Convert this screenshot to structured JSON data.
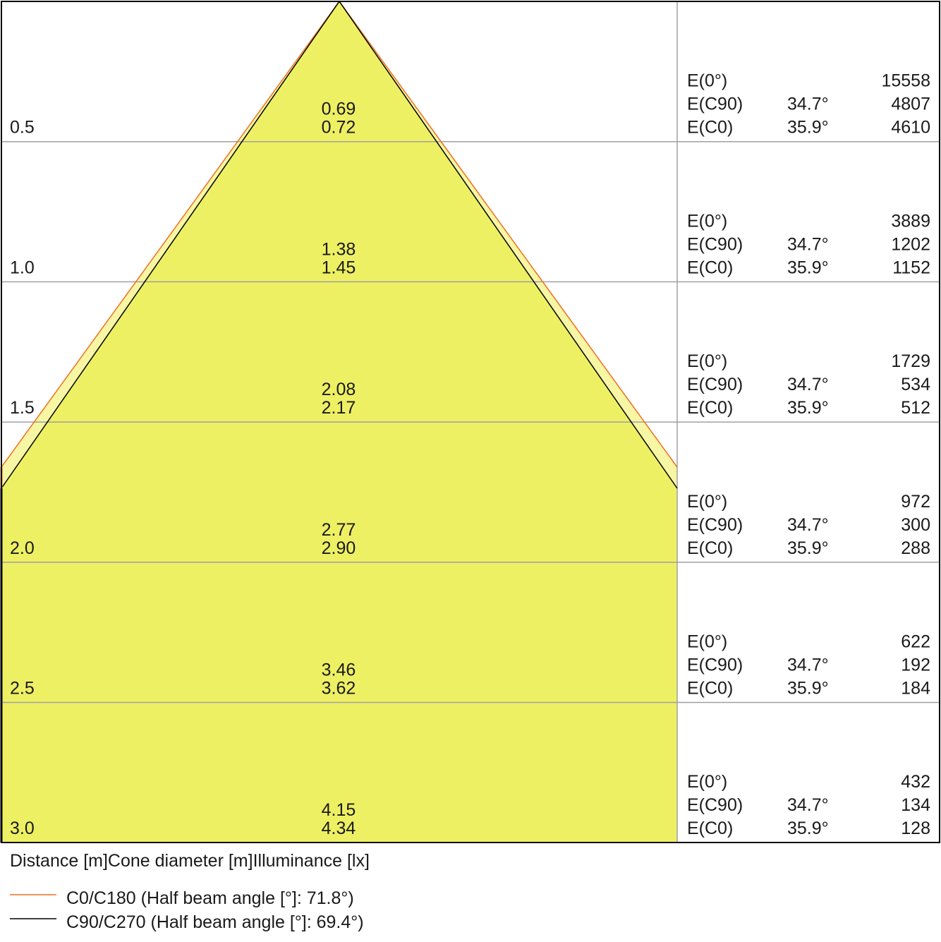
{
  "colors": {
    "c0_line": "#f07020",
    "c90_line": "#000000",
    "outer_fill": "#f6f6a4",
    "inner_fill": "#eef064",
    "grid": "#a0a0a0"
  },
  "rows": [
    {
      "distance": "0.5",
      "d1": "0.69",
      "d2": "0.72",
      "e0": "15558",
      "ec90": "4807",
      "ec0": "4610"
    },
    {
      "distance": "1.0",
      "d1": "1.38",
      "d2": "1.45",
      "e0": "3889",
      "ec90": "1202",
      "ec0": "1152"
    },
    {
      "distance": "1.5",
      "d1": "2.08",
      "d2": "2.17",
      "e0": "1729",
      "ec90": "534",
      "ec0": "512"
    },
    {
      "distance": "2.0",
      "d1": "2.77",
      "d2": "2.90",
      "e0": "972",
      "ec90": "300",
      "ec0": "288"
    },
    {
      "distance": "2.5",
      "d1": "3.46",
      "d2": "3.62",
      "e0": "622",
      "ec90": "192",
      "ec0": "184"
    },
    {
      "distance": "3.0",
      "d1": "4.15",
      "d2": "4.34",
      "e0": "432",
      "ec90": "134",
      "ec0": "128"
    }
  ],
  "labels": {
    "e0": "E(0°)",
    "ec90": "E(C90)",
    "ec0": "E(C0)",
    "angle_c90": "34.7°",
    "angle_c0": "35.9°"
  },
  "footer": "Distance [m]Cone diameter [m]Illuminance [lx]",
  "legend": [
    {
      "label": "C0/C180 (Half beam angle [°]: 71.8°)",
      "color": "#f07020"
    },
    {
      "label": "C90/C270 (Half beam angle [°]: 69.4°)",
      "color": "#000000"
    }
  ]
}
